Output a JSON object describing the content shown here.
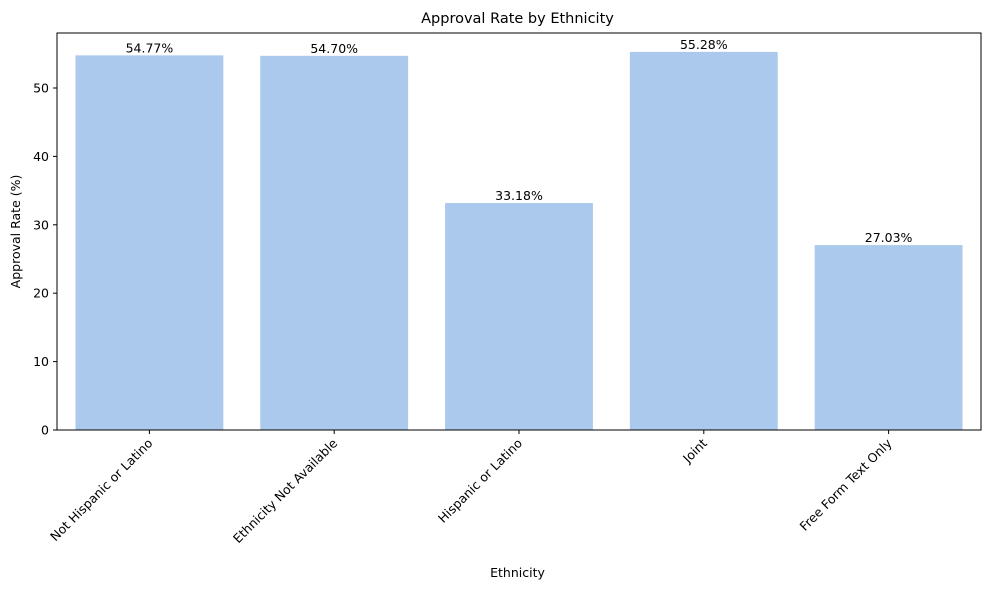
{
  "chart_data": {
    "type": "bar",
    "title": "Approval Rate by Ethnicity",
    "xlabel": "Ethnicity",
    "ylabel": "Approval Rate (%)",
    "categories": [
      "Not Hispanic or Latino",
      "Ethnicity Not Available",
      "Hispanic or Latino",
      "Joint",
      "Free Form Text Only"
    ],
    "values": [
      54.77,
      54.7,
      33.18,
      55.28,
      27.03
    ],
    "value_labels": [
      "54.77%",
      "54.70%",
      "33.18%",
      "55.28%",
      "27.03%"
    ],
    "yticks": [
      0,
      10,
      20,
      30,
      40,
      50
    ],
    "ylim": [
      0,
      58.04
    ],
    "grid": false,
    "colors": {
      "bar": "#abc9ec",
      "axis": "#000000",
      "background": "#ffffff"
    }
  }
}
